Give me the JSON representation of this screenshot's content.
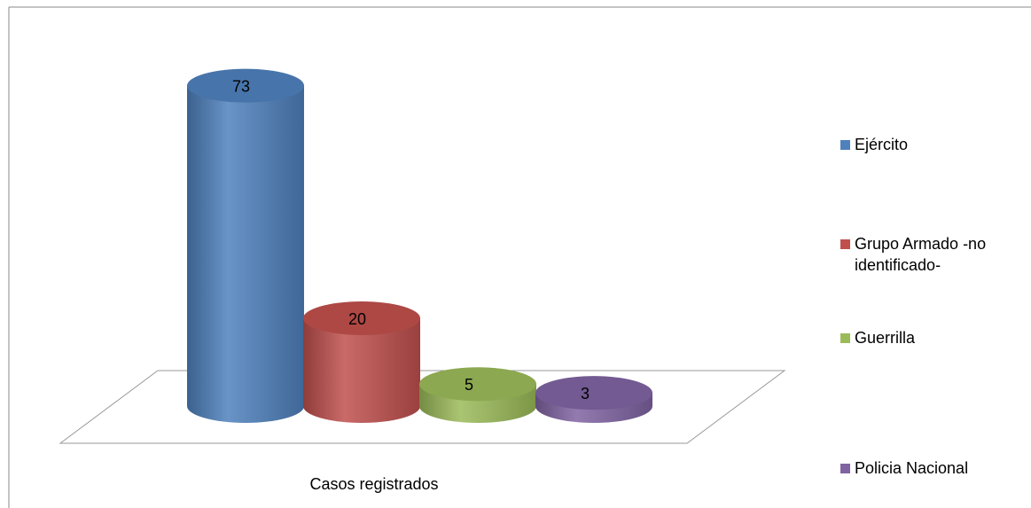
{
  "chart_data": {
    "type": "bar3d",
    "categories": [
      "Casos registrados"
    ],
    "series": [
      {
        "name": "Ejército",
        "color": "#4f81bd",
        "values": [
          73
        ]
      },
      {
        "name": "Grupo Armado -no identificado-",
        "color": "#c0504d",
        "values": [
          20
        ]
      },
      {
        "name": "Guerrilla",
        "color": "#9bbb59",
        "values": [
          5
        ]
      },
      {
        "name": "Policia Nacional",
        "color": "#8064a2",
        "values": [
          3
        ]
      }
    ],
    "legend": "right"
  }
}
